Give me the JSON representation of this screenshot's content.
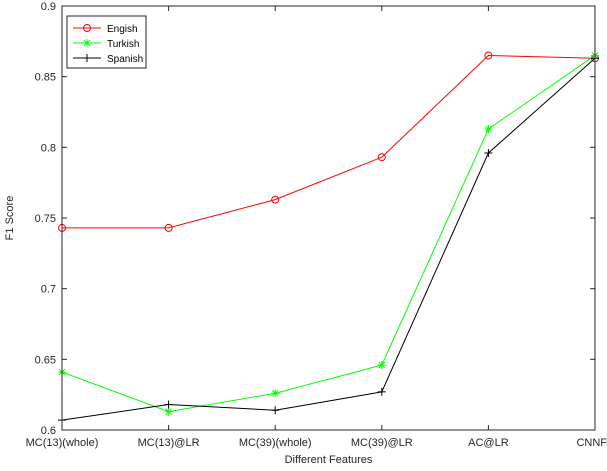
{
  "chart_data": {
    "type": "line",
    "title": "",
    "xlabel": "Different Features",
    "ylabel": "F1 Score",
    "categories": [
      "MC(13)(whole)",
      "MC(13)@LR",
      "MC(39)(whole)",
      "MC(39)@LR",
      "AC@LR",
      "CNNF"
    ],
    "ylim": [
      0.6,
      0.9
    ],
    "yticks": [
      "0.6",
      "0.65",
      "0.7",
      "0.75",
      "0.8",
      "0.85",
      "0.9"
    ],
    "grid": false,
    "legend_position": "top-left",
    "series": [
      {
        "name": "Engish",
        "color": "#ff0000",
        "marker": "circle",
        "values": [
          0.743,
          0.743,
          0.763,
          0.793,
          0.865,
          0.863
        ]
      },
      {
        "name": "Turkish",
        "color": "#00ff00",
        "marker": "asterisk",
        "values": [
          0.641,
          0.613,
          0.626,
          0.646,
          0.813,
          0.865
        ]
      },
      {
        "name": "Spanish",
        "color": "#000000",
        "marker": "plus",
        "values": [
          0.607,
          0.618,
          0.614,
          0.627,
          0.796,
          0.863
        ]
      }
    ]
  }
}
